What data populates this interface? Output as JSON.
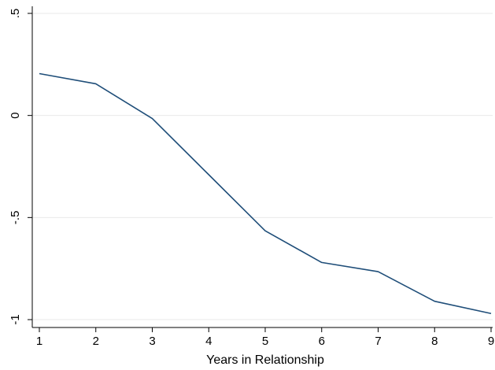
{
  "chart_data": {
    "type": "line",
    "title": "",
    "xlabel": "Years in Relationship",
    "ylabel": "",
    "x": [
      1,
      2,
      3,
      4,
      5,
      6,
      7,
      8,
      9
    ],
    "series": [
      {
        "values": [
          0.205,
          0.155,
          -0.015,
          -0.29,
          -0.565,
          -0.72,
          -0.765,
          -0.91,
          -0.97
        ]
      }
    ],
    "xlim": [
      1,
      9
    ],
    "ylim": [
      -1,
      0.5
    ],
    "xticks": [
      1,
      2,
      3,
      4,
      5,
      6,
      7,
      8,
      9
    ],
    "xtick_labels": [
      "1",
      "2",
      "3",
      "4",
      "5",
      "6",
      "7",
      "8",
      "9"
    ],
    "yticks": [
      -1,
      -0.5,
      0,
      0.5
    ],
    "ytick_labels": [
      "-1",
      "-.5",
      "0",
      ".5"
    ],
    "grid": true,
    "colors": {
      "line": "#1f4e79",
      "grid": "#eaeaea",
      "axis": "#000000"
    }
  }
}
